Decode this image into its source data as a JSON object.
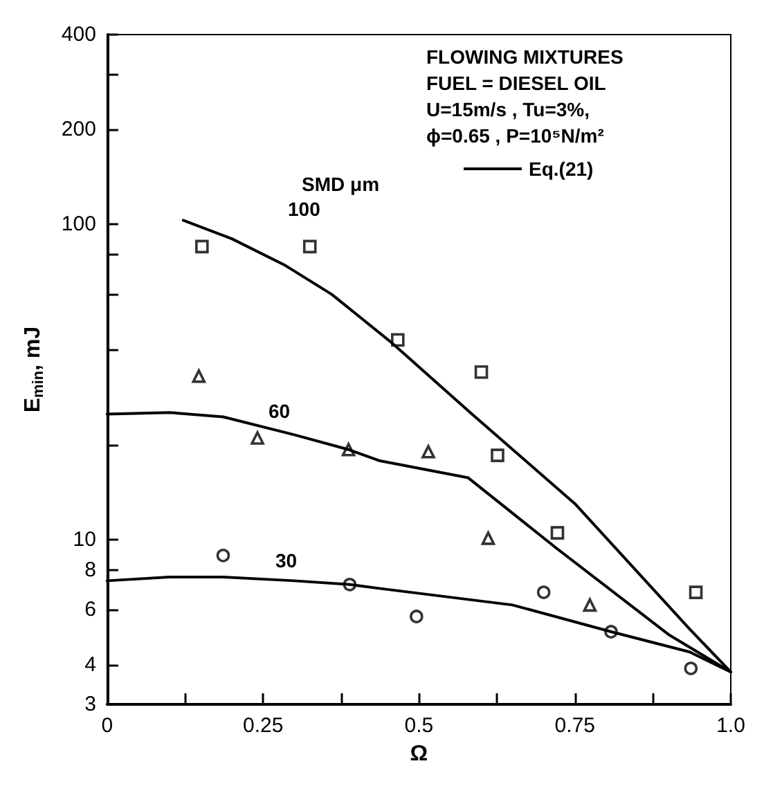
{
  "chart_data": {
    "type": "scatter",
    "xlabel": "Ω",
    "ylabel": "E$_{min}$, mJ",
    "xlim": [
      0,
      1
    ],
    "xticks": [
      0,
      {
        "value": 0.125,
        "label": null
      },
      0.25,
      {
        "value": 0.375,
        "label": null
      },
      0.5,
      {
        "value": 0.625,
        "label": null
      },
      0.75,
      {
        "value": 0.875,
        "label": null
      },
      {
        "value": 1,
        "label": "1.0"
      }
    ],
    "ylim": [
      3,
      400
    ],
    "yticks": [
      3,
      4,
      6,
      8,
      10,
      {
        "value": 20,
        "label": null
      },
      {
        "value": 40,
        "label": null
      },
      {
        "value": 60,
        "label": null
      },
      {
        "value": 80,
        "label": null
      },
      100,
      200,
      {
        "value": 300,
        "label": null
      },
      400
    ],
    "log": "y",
    "grid": false,
    "legend": "top right",
    "series": [
      {
        "marker": "square",
        "color": "#000000",
        "x": [
          0.152,
          0.325,
          0.466,
          0.6,
          0.626,
          0.722,
          0.944
        ],
        "values": [
          85,
          85,
          43,
          34,
          18.5,
          10.5,
          6.8
        ]
      },
      {
        "marker": "triangle",
        "color": "#000000",
        "x": [
          0.147,
          0.241,
          0.387,
          0.515,
          0.611,
          0.774
        ],
        "values": [
          33,
          21,
          19.3,
          19,
          10.1,
          6.2
        ]
      },
      {
        "marker": "circle",
        "color": "#000000",
        "x": [
          0.186,
          0.389,
          0.496,
          0.7,
          0.808,
          0.936
        ],
        "values": [
          8.9,
          7.2,
          5.7,
          6.8,
          5.1,
          3.9
        ]
      },
      {
        "type": "line",
        "name": "Eq.(21)",
        "color": "#000000",
        "line_style": "solid",
        "x": [
          0.122,
          0.2,
          0.286,
          0.36,
          0.457,
          0.536,
          0.585,
          0.75,
          0.934,
          1.0
        ],
        "values": [
          103,
          90,
          74,
          60,
          42,
          30.5,
          25,
          13,
          5.2,
          3.8
        ]
      },
      {
        "type": "line",
        "color": "#000000",
        "line_style": "solid",
        "x": [
          0,
          0.1,
          0.186,
          0.3,
          0.387,
          0.436,
          0.579,
          0.72,
          0.9,
          1.0
        ],
        "values": [
          25,
          25.3,
          24.5,
          21.5,
          19.3,
          17.8,
          15.7,
          9.4,
          5.0,
          3.8
        ]
      },
      {
        "type": "line",
        "color": "#000000",
        "line_style": "solid",
        "x": [
          0,
          0.1,
          0.186,
          0.3,
          0.389,
          0.436,
          0.65,
          0.808,
          0.934,
          1.0
        ],
        "values": [
          7.4,
          7.6,
          7.6,
          7.4,
          7.2,
          7.0,
          6.2,
          5.1,
          4.4,
          3.8
        ]
      }
    ],
    "annotations": [
      "FLOWING MIXTURES",
      "FUEL = DIESEL OIL",
      "U=15m/s , Tu=3%,",
      "ϕ=0.65 , P=10⁵N/m²",
      "SMD μm",
      "100",
      "60",
      "30"
    ]
  }
}
